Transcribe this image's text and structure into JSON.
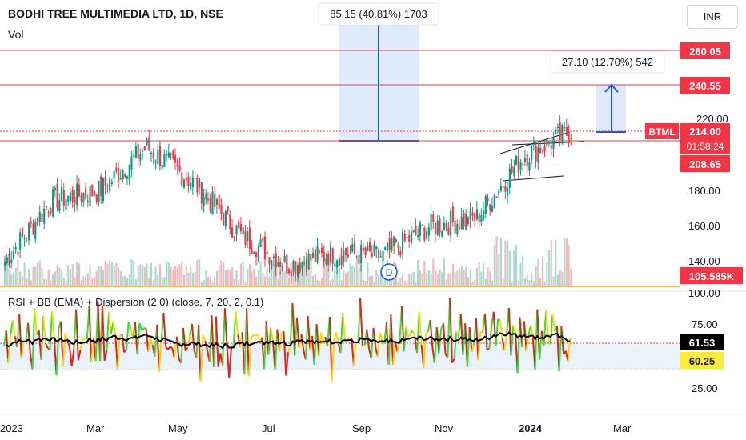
{
  "header": {
    "title": "BODHI TREE MULTIMEDIA LTD, 1D, NSE",
    "vol_label": "Vol",
    "currency": "INR"
  },
  "indicator": {
    "title": "RSI + BB (EMA) + Dispersion (2.0) (close, 7, 20, 2, 0.1)",
    "value_label": "61.53",
    "second_label": "60.25",
    "y_ticks": [
      "100.00",
      "75.00",
      "25.00"
    ]
  },
  "annotations": {
    "measure1": "85.15 (40.81%) 1703",
    "measure2": "27.10 (12.70%) 542",
    "event_marker": "D"
  },
  "price_labels": {
    "level1": "260.05",
    "level2": "240.55",
    "ticker": "BTML",
    "last": "214.00",
    "countdown": "01:58:24",
    "support": "208.65",
    "volume": "105.585K"
  },
  "chart_data": {
    "type": "candlestick",
    "title": "BODHI TREE MULTIMEDIA LTD, 1D, NSE",
    "y_ticks": [
      "220.00",
      "180.00",
      "160.00",
      "140.00"
    ],
    "x_ticks": [
      "2023",
      "Mar",
      "May",
      "Jul",
      "Sep",
      "Nov",
      "2024",
      "Mar"
    ],
    "horizontal_levels": [
      260.05,
      240.55,
      208.65
    ],
    "last_price": 214.0,
    "approx_close_path": [
      {
        "period": "Jan 2023",
        "close": 140
      },
      {
        "period": "Feb 2023",
        "close": 175
      },
      {
        "period": "Mar 2023",
        "close": 180
      },
      {
        "period": "Apr 2023",
        "close": 205
      },
      {
        "period": "May 2023",
        "close": 185
      },
      {
        "period": "Jun 2023",
        "close": 155
      },
      {
        "period": "Jul 2023",
        "close": 138
      },
      {
        "period": "Aug 2023",
        "close": 145
      },
      {
        "period": "Sep 2023",
        "close": 143
      },
      {
        "period": "Oct 2023",
        "close": 160
      },
      {
        "period": "Nov 2023",
        "close": 165
      },
      {
        "period": "Dec 2023",
        "close": 200
      },
      {
        "period": "Jan 2024",
        "close": 214
      }
    ],
    "colors": {
      "up": "#089981",
      "down": "#f23645",
      "level": "#f23645",
      "measure": "#1e53e5"
    }
  }
}
